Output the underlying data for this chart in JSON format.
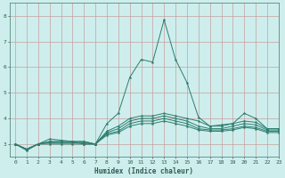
{
  "xlabel": "Humidex (Indice chaleur)",
  "background_color": "#ceeeed",
  "line_color": "#2d7d6e",
  "grid_color_h": "#c4a8a8",
  "grid_color_v": "#c4a8a8",
  "xlim": [
    -0.5,
    23
  ],
  "ylim": [
    2.5,
    8.5
  ],
  "yticks": [
    3,
    4,
    5,
    6,
    7,
    8
  ],
  "xticks": [
    0,
    1,
    2,
    3,
    4,
    5,
    6,
    7,
    8,
    9,
    10,
    11,
    12,
    13,
    14,
    15,
    16,
    17,
    18,
    19,
    20,
    21,
    22,
    23
  ],
  "series": [
    [
      3.0,
      2.75,
      3.0,
      3.2,
      3.15,
      3.1,
      3.0,
      3.0,
      3.8,
      4.2,
      5.6,
      6.3,
      6.2,
      7.85,
      6.3,
      5.4,
      4.05,
      3.7,
      3.75,
      3.8,
      4.2,
      4.0,
      3.6,
      3.6
    ],
    [
      3.0,
      2.8,
      3.0,
      3.1,
      3.1,
      3.1,
      3.1,
      3.0,
      3.5,
      3.7,
      4.0,
      4.1,
      4.1,
      4.2,
      4.1,
      4.0,
      3.9,
      3.7,
      3.7,
      3.8,
      3.9,
      3.85,
      3.6,
      3.6
    ],
    [
      3.0,
      2.8,
      3.0,
      3.1,
      3.1,
      3.1,
      3.1,
      3.0,
      3.45,
      3.6,
      3.9,
      4.0,
      4.0,
      4.1,
      4.0,
      3.9,
      3.7,
      3.6,
      3.6,
      3.7,
      3.8,
      3.75,
      3.55,
      3.55
    ],
    [
      3.0,
      2.8,
      3.0,
      3.05,
      3.05,
      3.05,
      3.05,
      3.0,
      3.4,
      3.5,
      3.8,
      3.9,
      3.9,
      4.0,
      3.9,
      3.8,
      3.6,
      3.55,
      3.55,
      3.6,
      3.7,
      3.65,
      3.5,
      3.5
    ],
    [
      3.0,
      2.8,
      3.0,
      3.0,
      3.0,
      3.0,
      3.0,
      3.0,
      3.35,
      3.45,
      3.7,
      3.8,
      3.8,
      3.9,
      3.8,
      3.7,
      3.55,
      3.5,
      3.5,
      3.55,
      3.65,
      3.6,
      3.45,
      3.45
    ]
  ]
}
